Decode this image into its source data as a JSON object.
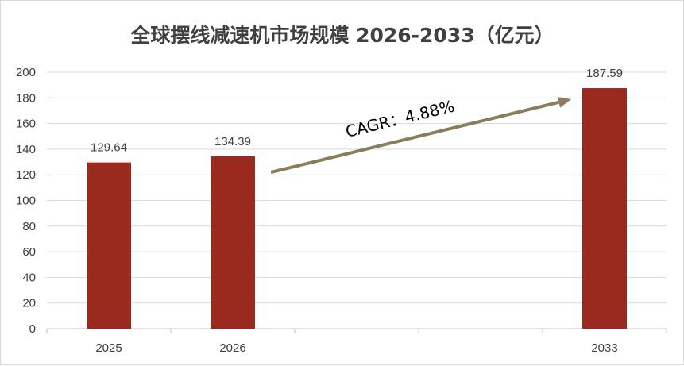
{
  "chart_data": {
    "type": "bar",
    "title": "全球摆线减速机市场规模 2026-2033（亿元）",
    "categories": [
      "2025",
      "2026",
      "",
      "",
      "2033"
    ],
    "values": [
      129.64,
      134.39,
      null,
      null,
      187.59
    ],
    "data_labels": [
      "129.64",
      "134.39",
      "",
      "",
      "187.59"
    ],
    "ylim": [
      0,
      200
    ],
    "yticks": [
      0,
      20,
      40,
      60,
      80,
      100,
      120,
      140,
      160,
      180,
      200
    ],
    "grid": true,
    "bar_color": "#9b2a1e",
    "annotation": {
      "text": "CAGR：4.88%",
      "arrow_from_category": "2026",
      "arrow_to_category": "2033",
      "arrow_color": "#8b7d5c"
    }
  }
}
